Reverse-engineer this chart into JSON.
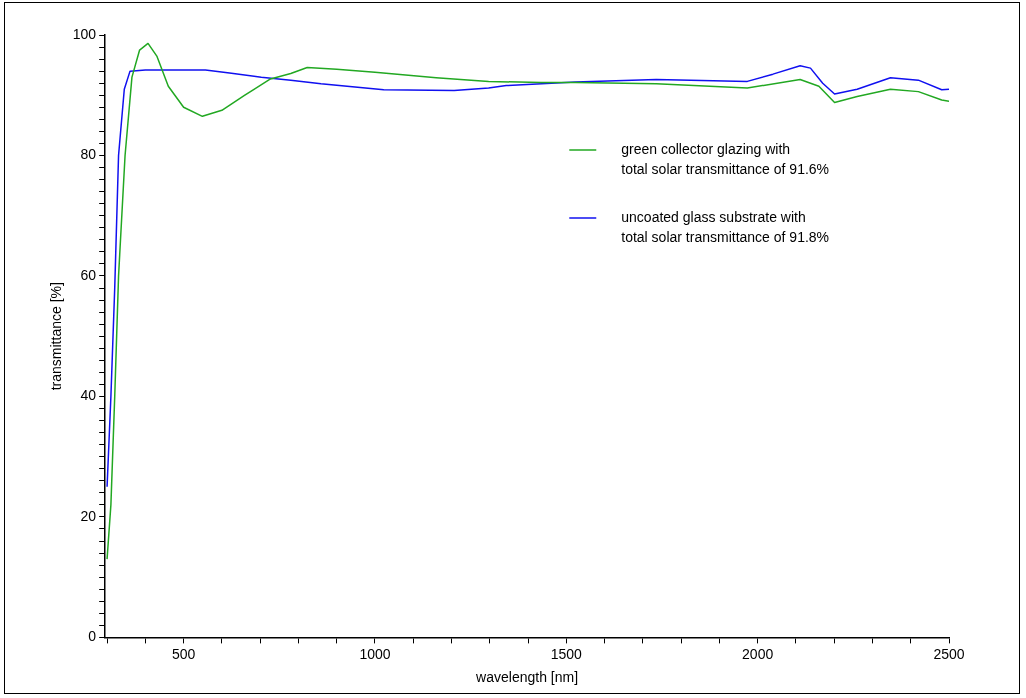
{
  "chart_data": {
    "type": "line",
    "xlabel": "wavelength [nm]",
    "ylabel": "transmittance [%]",
    "xlim": [
      295,
      2500
    ],
    "ylim": [
      0,
      100
    ],
    "xticks": [
      {
        "value": 300,
        "label": null
      },
      {
        "value": 400,
        "label": null
      },
      500,
      {
        "value": 600,
        "label": null
      },
      {
        "value": 700,
        "label": null
      },
      {
        "value": 800,
        "label": null
      },
      {
        "value": 900,
        "label": null
      },
      1000,
      {
        "value": 1100,
        "label": null
      },
      {
        "value": 1200,
        "label": null
      },
      {
        "value": 1300,
        "label": null
      },
      {
        "value": 1400,
        "label": null
      },
      1500,
      {
        "value": 1600,
        "label": null
      },
      {
        "value": 1700,
        "label": null
      },
      {
        "value": 1800,
        "label": null
      },
      {
        "value": 1900,
        "label": null
      },
      2000,
      {
        "value": 2100,
        "label": null
      },
      {
        "value": 2200,
        "label": null
      },
      {
        "value": 2300,
        "label": null
      },
      {
        "value": 2400,
        "label": null
      },
      2500
    ],
    "yticks": [
      0,
      {
        "value": 2,
        "label": null
      },
      {
        "value": 4,
        "label": null
      },
      {
        "value": 6,
        "label": null
      },
      {
        "value": 8,
        "label": null
      },
      {
        "value": 10,
        "label": null
      },
      {
        "value": 12,
        "label": null
      },
      {
        "value": 14,
        "label": null
      },
      {
        "value": 16,
        "label": null
      },
      {
        "value": 18,
        "label": null
      },
      20,
      {
        "value": 22,
        "label": null
      },
      {
        "value": 24,
        "label": null
      },
      {
        "value": 26,
        "label": null
      },
      {
        "value": 28,
        "label": null
      },
      {
        "value": 30,
        "label": null
      },
      {
        "value": 32,
        "label": null
      },
      {
        "value": 34,
        "label": null
      },
      {
        "value": 36,
        "label": null
      },
      {
        "value": 38,
        "label": null
      },
      40,
      {
        "value": 42,
        "label": null
      },
      {
        "value": 44,
        "label": null
      },
      {
        "value": 46,
        "label": null
      },
      {
        "value": 48,
        "label": null
      },
      {
        "value": 50,
        "label": null
      },
      {
        "value": 52,
        "label": null
      },
      {
        "value": 54,
        "label": null
      },
      {
        "value": 56,
        "label": null
      },
      {
        "value": 58,
        "label": null
      },
      60,
      {
        "value": 62,
        "label": null
      },
      {
        "value": 64,
        "label": null
      },
      {
        "value": 66,
        "label": null
      },
      {
        "value": 68,
        "label": null
      },
      {
        "value": 70,
        "label": null
      },
      {
        "value": 72,
        "label": null
      },
      {
        "value": 74,
        "label": null
      },
      {
        "value": 76,
        "label": null
      },
      {
        "value": 78,
        "label": null
      },
      80,
      {
        "value": 82,
        "label": null
      },
      {
        "value": 84,
        "label": null
      },
      {
        "value": 86,
        "label": null
      },
      {
        "value": 88,
        "label": null
      },
      {
        "value": 90,
        "label": null
      },
      {
        "value": 92,
        "label": null
      },
      {
        "value": 94,
        "label": null
      },
      {
        "value": 96,
        "label": null
      },
      {
        "value": 98,
        "label": null
      },
      100
    ],
    "grid": false,
    "legend": "right",
    "marker": "none",
    "line_style": "solid",
    "series": [
      {
        "name": "green collector glazing with\ntotal solar transmittance of 91.6%",
        "color": "#22a822",
        "x": [
          300,
          310,
          320,
          330,
          347,
          365,
          385,
          407,
          430,
          460,
          500,
          549,
          600,
          660,
          727,
          780,
          823,
          900,
          1000,
          1160,
          1297,
          1434,
          1524,
          1735,
          1973,
          2111,
          2160,
          2201,
          2260,
          2347,
          2420,
          2481,
          2500
        ],
        "values": [
          13,
          22,
          40,
          60,
          80,
          93,
          97.5,
          98.6,
          96.5,
          91.5,
          88,
          86.5,
          87.5,
          90,
          92.7,
          93.6,
          94.6,
          94.3,
          93.8,
          92.9,
          92.3,
          92.1,
          92.1,
          91.9,
          91.2,
          92.6,
          91.5,
          88.8,
          89.8,
          91,
          90.6,
          89.2,
          89
        ]
      },
      {
        "name": "uncoated glass substrate with\ntotal solar transmittance of 91.8%",
        "color": "#1010f0",
        "x": [
          300,
          310,
          320,
          330,
          345,
          360,
          400,
          557,
          620,
          703,
          780,
          859,
          1023,
          1207,
          1297,
          1343,
          1524,
          1735,
          1973,
          2040,
          2111,
          2138,
          2170,
          2201,
          2260,
          2347,
          2420,
          2481,
          2500
        ],
        "values": [
          25,
          40,
          58,
          80,
          91,
          94,
          94.2,
          94.2,
          93.7,
          93,
          92.5,
          91.9,
          90.9,
          90.8,
          91.2,
          91.6,
          92.2,
          92.6,
          92.3,
          93.5,
          94.9,
          94.5,
          92,
          90.2,
          91,
          92.9,
          92.5,
          90.9,
          91
        ]
      }
    ]
  }
}
